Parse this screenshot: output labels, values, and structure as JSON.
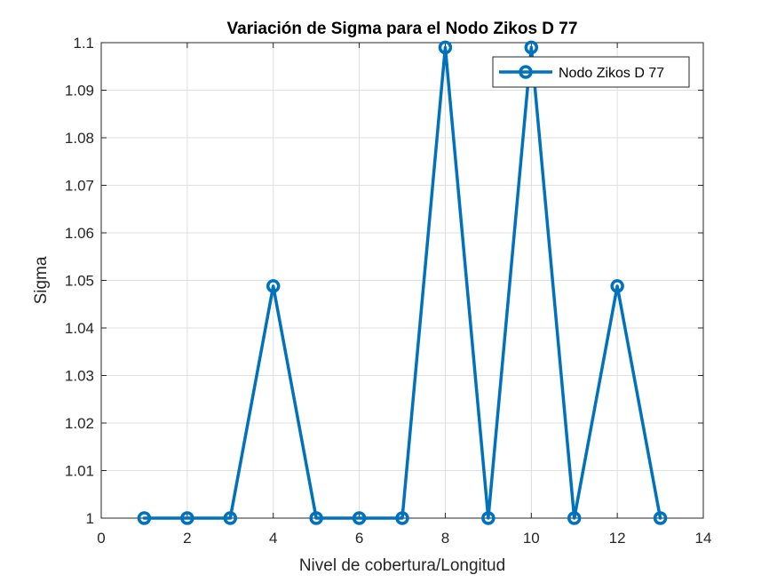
{
  "chart_data": {
    "type": "line",
    "title": "Variación de Sigma para el Nodo Zikos D 77",
    "xlabel": "Nivel de cobertura/Longitud",
    "ylabel": "Sigma",
    "xlim": [
      0,
      14
    ],
    "ylim": [
      1,
      1.1
    ],
    "x_ticks": [
      0,
      2,
      4,
      6,
      8,
      10,
      12,
      14
    ],
    "x_tick_labels": [
      "0",
      "2",
      "4",
      "6",
      "8",
      "10",
      "12",
      "14"
    ],
    "y_ticks": [
      1,
      1.01,
      1.02,
      1.03,
      1.04,
      1.05,
      1.06,
      1.07,
      1.08,
      1.09,
      1.1
    ],
    "y_tick_labels": [
      "1",
      "1.01",
      "1.02",
      "1.03",
      "1.04",
      "1.05",
      "1.06",
      "1.07",
      "1.08",
      "1.09",
      "1.1"
    ],
    "grid": true,
    "legend_position": "top-right",
    "series": [
      {
        "name": "Nodo Zikos D 77",
        "color": "#0072BD",
        "marker": "circle",
        "x": [
          1,
          2,
          3,
          4,
          5,
          6,
          7,
          8,
          9,
          10,
          11,
          12,
          13
        ],
        "y": [
          1,
          1,
          1,
          1.0488,
          1,
          1,
          1,
          1.099,
          1,
          1.099,
          1,
          1.0488,
          1
        ]
      }
    ]
  }
}
